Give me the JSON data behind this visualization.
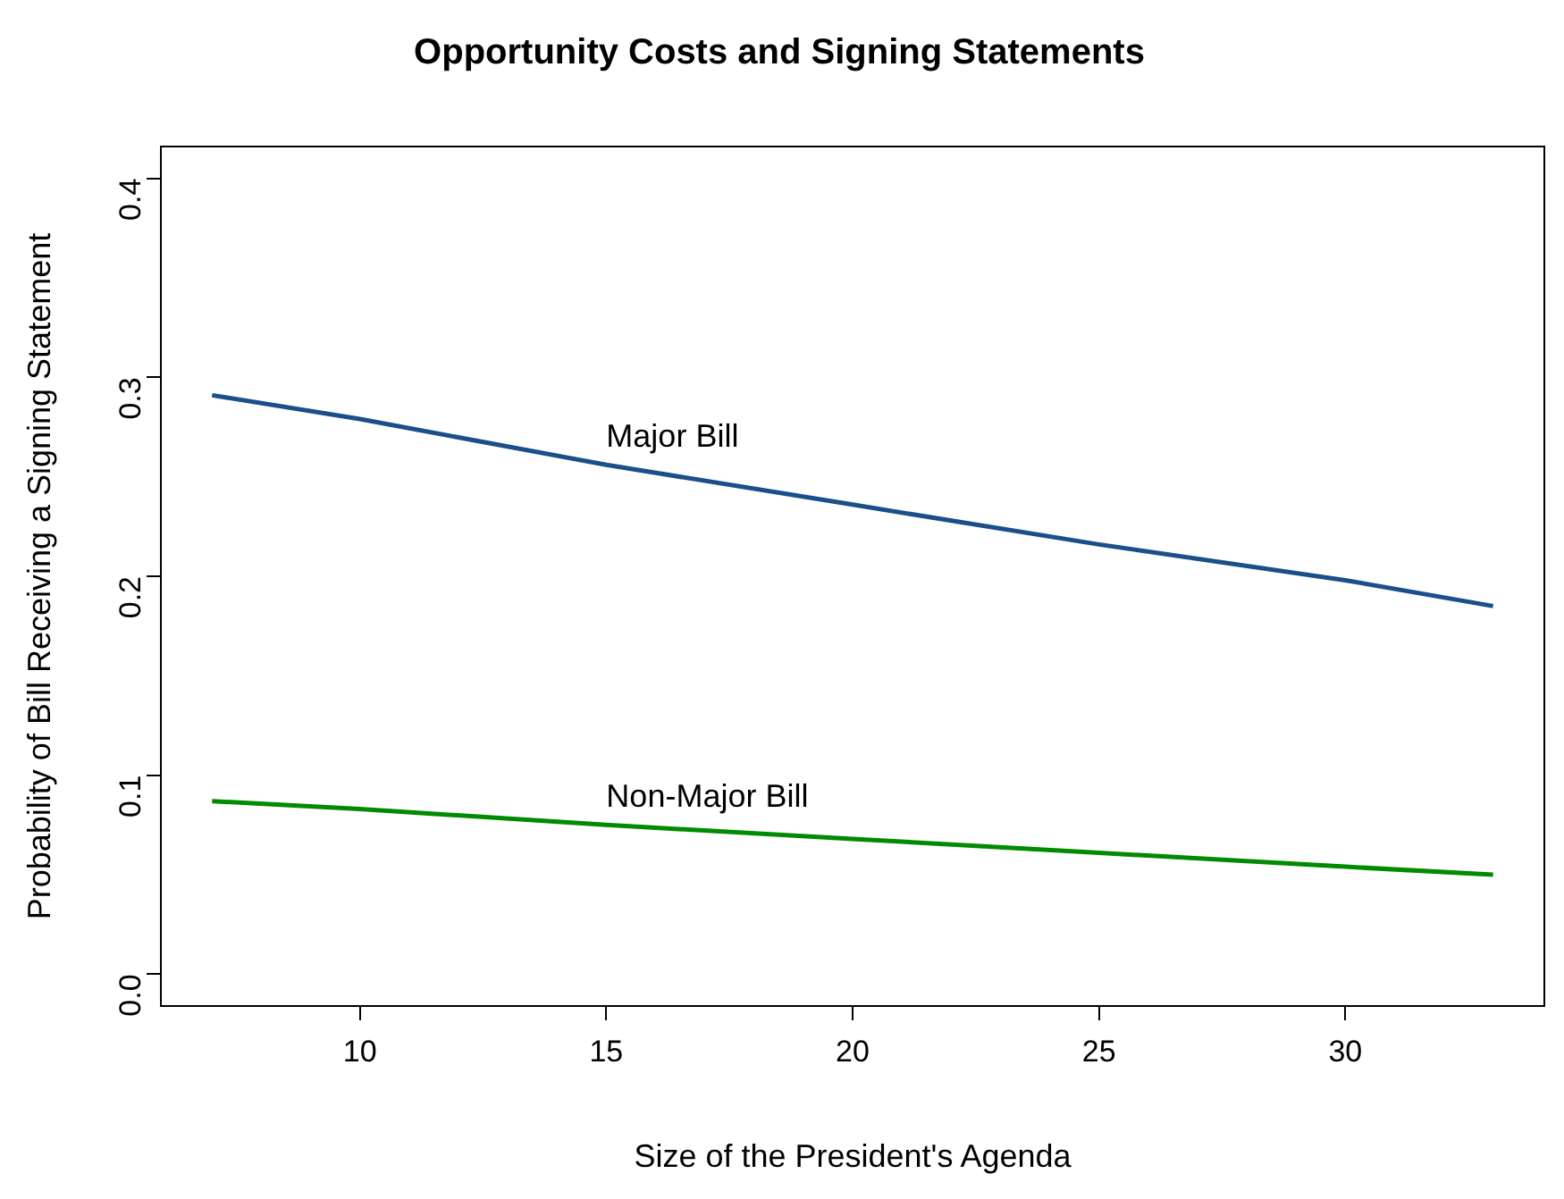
{
  "chart_data": {
    "type": "line",
    "title": "Opportunity Costs and Signing Statements",
    "xlabel": "Size of the President's Agenda",
    "ylabel": "Probability of Bill Receiving a Signing Statement",
    "series": [
      {
        "name": "Major Bill",
        "color": "#1a4f8a",
        "x": [
          7,
          10,
          15,
          20,
          25,
          30,
          33
        ],
        "values": [
          0.291,
          0.279,
          0.256,
          0.236,
          0.216,
          0.198,
          0.185
        ]
      },
      {
        "name": "Non-Major Bill",
        "color": "#008b00",
        "x": [
          7,
          10,
          15,
          20,
          25,
          30,
          33
        ],
        "values": [
          0.087,
          0.083,
          0.075,
          0.068,
          0.061,
          0.054,
          0.05
        ]
      }
    ],
    "xlim": [
      5.96,
      34.04
    ],
    "xticks": [
      10,
      15,
      20,
      25,
      30
    ],
    "ylim": [
      -0.016,
      0.416
    ],
    "yticks": [
      {
        "value": 0,
        "label": "0.0"
      },
      {
        "value": 0.1,
        "label": "0.1"
      },
      {
        "value": 0.2,
        "label": "0.2"
      },
      {
        "value": 0.3,
        "label": "0.3"
      },
      {
        "value": 0.4,
        "label": "0.4"
      }
    ],
    "grid": false,
    "legend": false,
    "marker": "none",
    "line_style": "solid"
  }
}
